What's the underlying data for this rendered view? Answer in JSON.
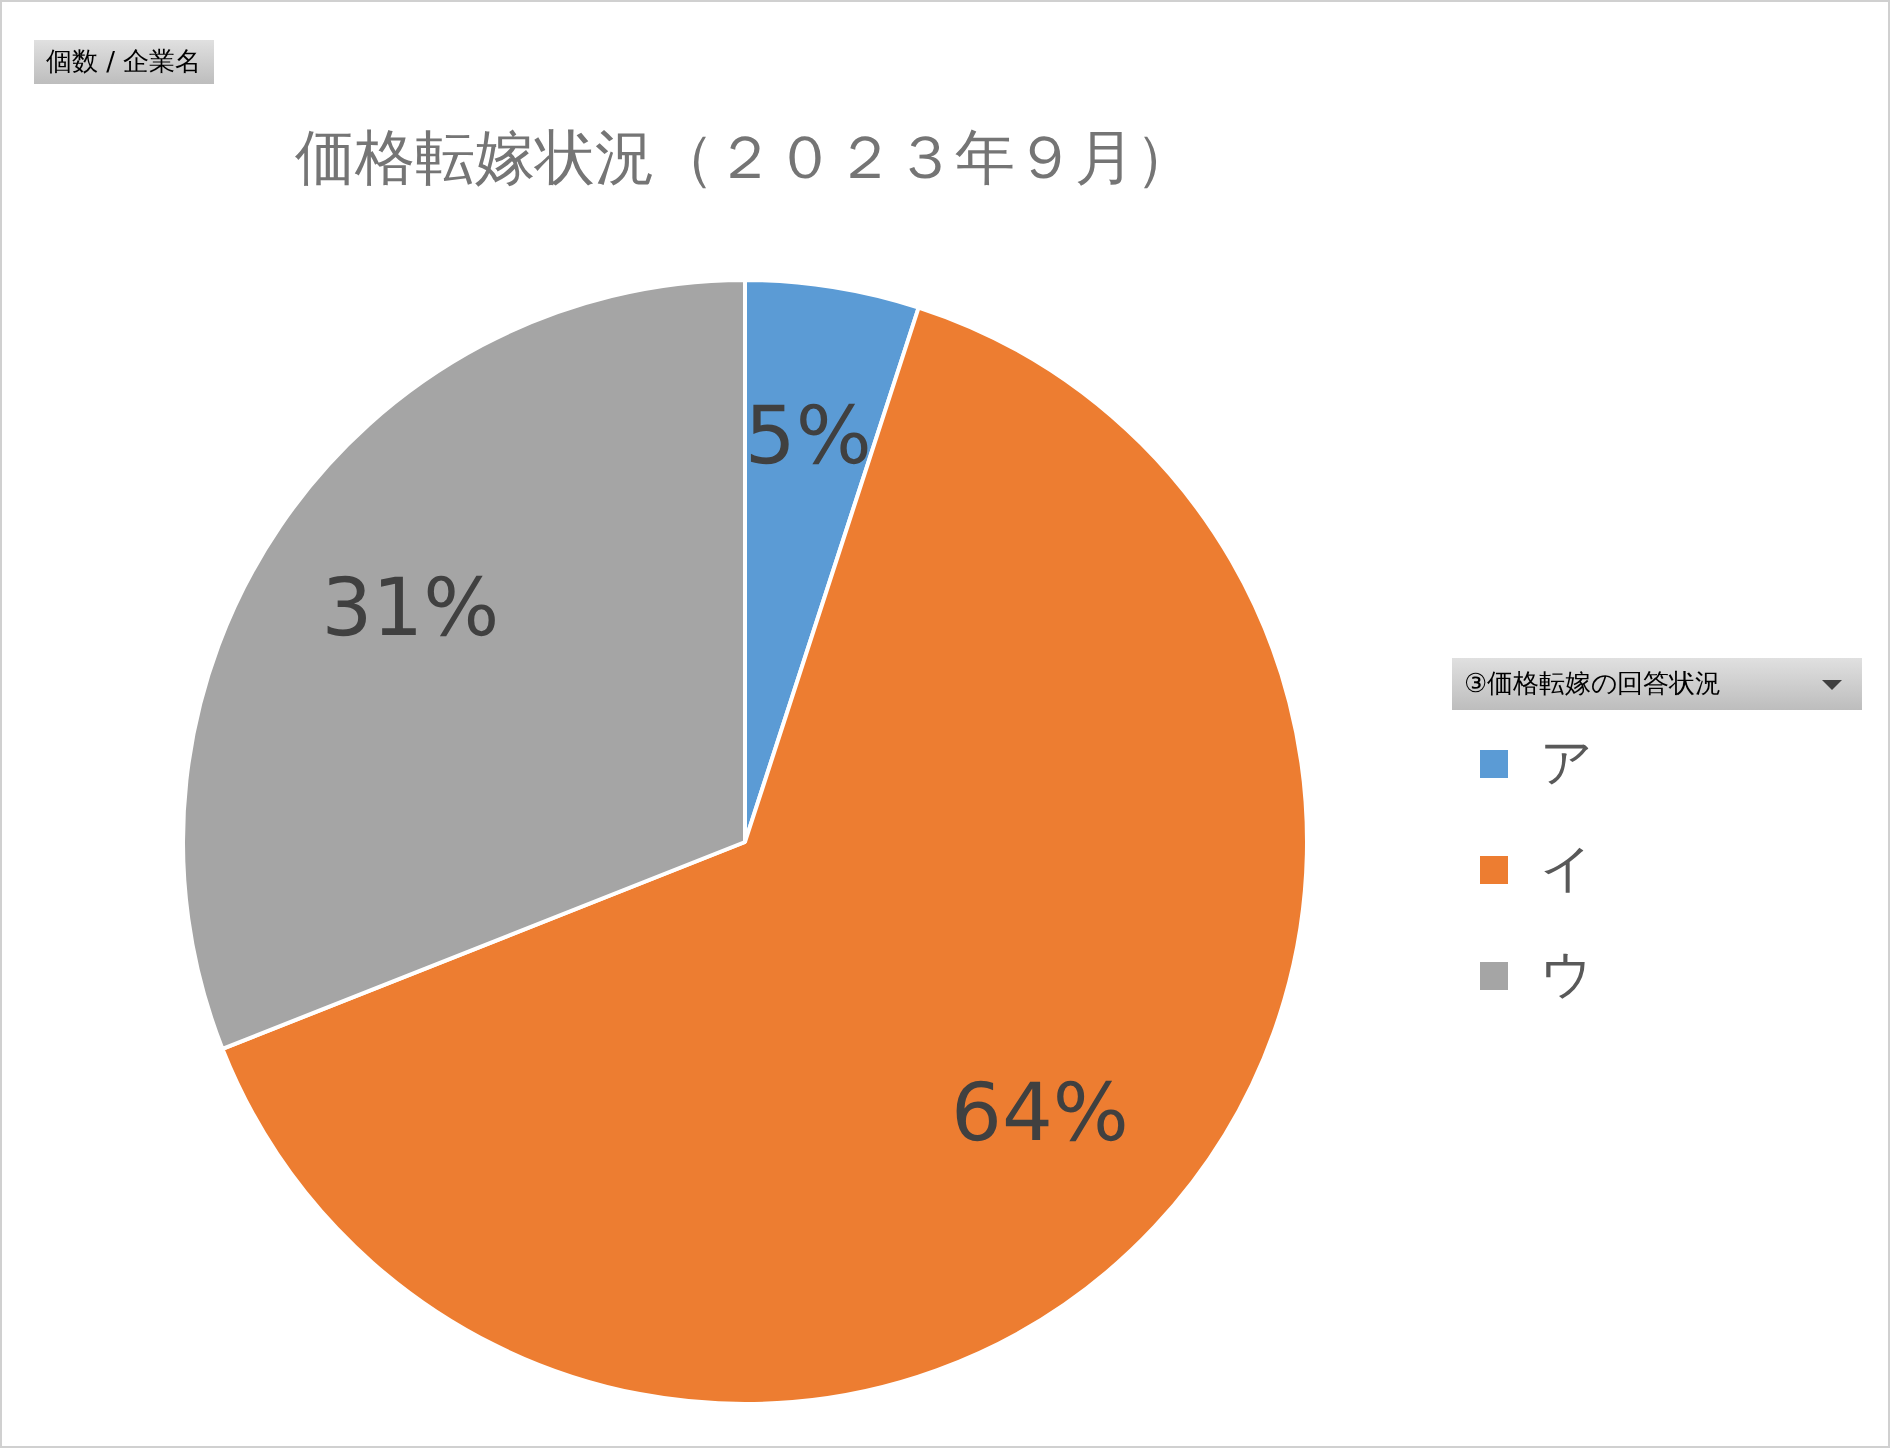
{
  "chart_data": {
    "type": "pie",
    "title": "価格転嫁状況（２０２３年９月）",
    "legend_title": "③価格転嫁の回答状況",
    "annotations": [
      "個数 / 企業名"
    ],
    "categories": [
      "ア",
      "イ",
      "ウ"
    ],
    "values": [
      5,
      64,
      31
    ],
    "colors": [
      "#5b9bd5",
      "#ed7d31",
      "#a5a5a5"
    ],
    "value_labels": [
      "5%",
      "64%",
      "31%"
    ],
    "legend": "right"
  }
}
